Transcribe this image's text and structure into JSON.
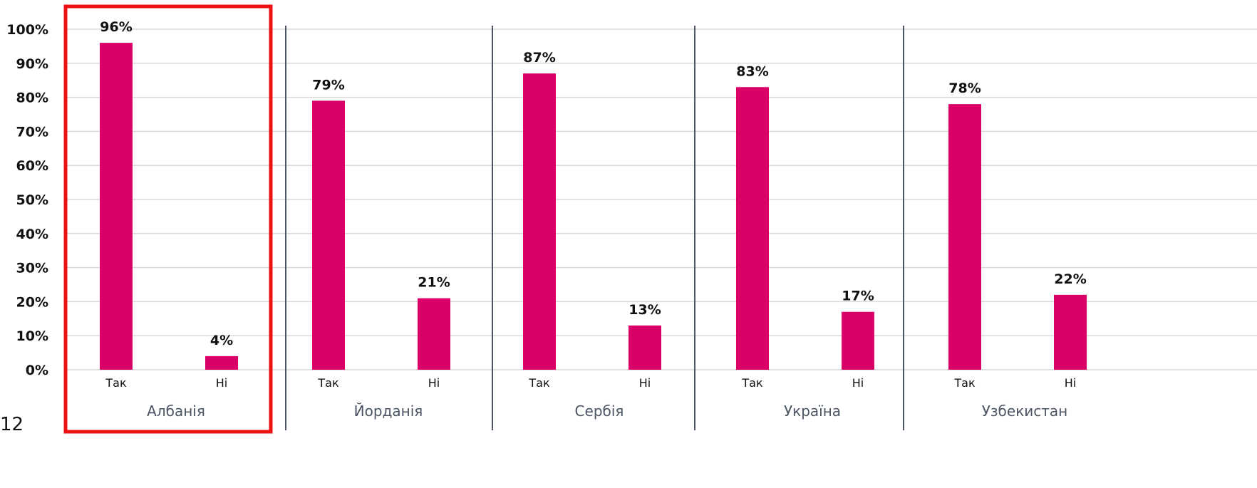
{
  "page_number": "12",
  "colors": {
    "bar": "#d90068",
    "highlight": "#ee1111",
    "grid": "#d9d9d9",
    "separator": "#4a5462"
  },
  "chart_data": {
    "type": "bar",
    "ylim": [
      0,
      100
    ],
    "yticks": [
      "0%",
      "10%",
      "20%",
      "30%",
      "40%",
      "50%",
      "60%",
      "70%",
      "80%",
      "90%",
      "100%"
    ],
    "categories": [
      "Так",
      "Ні"
    ],
    "groups": [
      {
        "name": "Албанія",
        "values": [
          96,
          4
        ],
        "labels": [
          "96%",
          "4%"
        ],
        "highlighted": true
      },
      {
        "name": "Йорданія",
        "values": [
          79,
          21
        ],
        "labels": [
          "79%",
          "21%"
        ]
      },
      {
        "name": "Сербія",
        "values": [
          87,
          13
        ],
        "labels": [
          "87%",
          "13%"
        ]
      },
      {
        "name": "Україна",
        "values": [
          83,
          17
        ],
        "labels": [
          "83%",
          "17%"
        ]
      },
      {
        "name": "Узбекистан",
        "values": [
          78,
          22
        ],
        "labels": [
          "78%",
          "22%"
        ]
      }
    ],
    "grid": true
  }
}
